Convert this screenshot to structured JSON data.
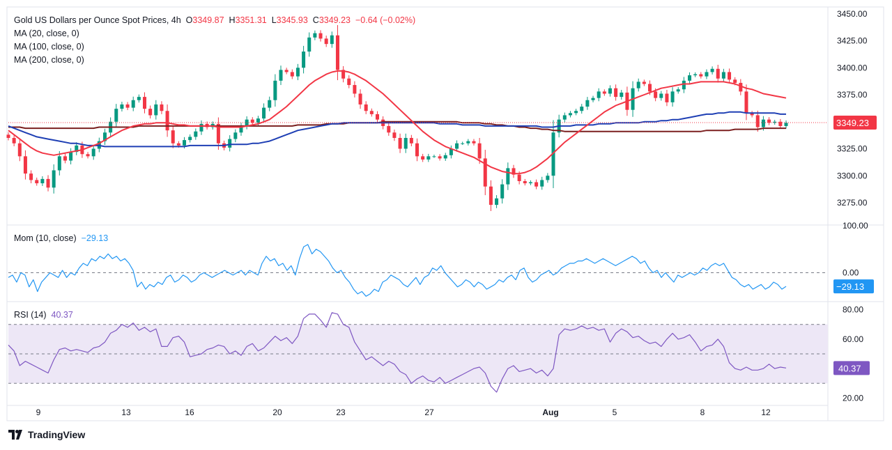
{
  "title": "Gold US Dollars per Ounce Spot Prices, 4h",
  "ohlc": {
    "o_label": "O",
    "o": "3349.87",
    "h_label": "H",
    "h": "3351.31",
    "l_label": "L",
    "l": "3345.93",
    "c_label": "C",
    "c": "3349.23",
    "change": "−0.64 (−0.02%)"
  },
  "indicators": {
    "ma20": "MA (20, close, 0)",
    "ma100": "MA (100, close, 0)",
    "ma200": "MA (200, close, 0)",
    "mom_label": "Mom (10, close)",
    "mom_value": "−29.13",
    "rsi_label": "RSI (14)",
    "rsi_value": "40.37"
  },
  "price_badge": "3349.23",
  "mom_badge": "−29.13",
  "rsi_badge": "40.37",
  "branding": "TradingView",
  "colors": {
    "up": "#089981",
    "down": "#f23645",
    "ma20": "#f23645",
    "ma100": "#1e3fb4",
    "ma200": "#7b1f1f",
    "mom": "#2196f3",
    "rsi": "#7e57c2",
    "rsi_band": "#ede7f6"
  },
  "chart_data": [
    {
      "type": "candlestick",
      "title": "Gold US Dollars per Ounce Spot Prices, 4h",
      "ylim": [
        3255,
        3455
      ],
      "y_ticks": [
        "3275.00",
        "3300.00",
        "3325.00",
        "3350.00",
        "3375.00",
        "3400.00",
        "3425.00",
        "3450.00"
      ],
      "x_ticks": [
        "9",
        "13",
        "16",
        "20",
        "23",
        "27",
        "Aug",
        "5",
        "8",
        "12"
      ],
      "last_price": 3349.23,
      "closes": [
        3335,
        3330,
        3318,
        3302,
        3296,
        3293,
        3297,
        3289,
        3305,
        3318,
        3314,
        3322,
        3328,
        3320,
        3318,
        3325,
        3332,
        3340,
        3350,
        3362,
        3366,
        3363,
        3370,
        3373,
        3362,
        3356,
        3366,
        3360,
        3342,
        3330,
        3328,
        3333,
        3336,
        3341,
        3348,
        3345,
        3348,
        3330,
        3326,
        3334,
        3340,
        3346,
        3352,
        3349,
        3353,
        3363,
        3370,
        3388,
        3398,
        3396,
        3392,
        3400,
        3415,
        3428,
        3432,
        3427,
        3422,
        3430,
        3398,
        3390,
        3384,
        3376,
        3366,
        3360,
        3357,
        3352,
        3346,
        3340,
        3335,
        3325,
        3335,
        3330,
        3318,
        3315,
        3318,
        3318,
        3316,
        3319,
        3325,
        3330,
        3330,
        3332,
        3330,
        3316,
        3290,
        3273,
        3279,
        3292,
        3307,
        3301,
        3295,
        3293,
        3294,
        3290,
        3296,
        3300,
        3340,
        3352,
        3356,
        3358,
        3360,
        3364,
        3370,
        3372,
        3378,
        3376,
        3381,
        3373,
        3377,
        3361,
        3381,
        3387,
        3385,
        3378,
        3372,
        3376,
        3368,
        3378,
        3380,
        3388,
        3393,
        3394,
        3392,
        3396,
        3399,
        3390,
        3396,
        3389,
        3386,
        3378,
        3358,
        3356,
        3345,
        3352,
        3349,
        3350,
        3346,
        3349
      ],
      "ma20": [
        3342,
        3338,
        3334,
        3330,
        3326,
        3323,
        3321,
        3320,
        3319,
        3320,
        3321,
        3322,
        3323,
        3324,
        3326,
        3328,
        3330,
        3333,
        3336,
        3339,
        3342,
        3344,
        3346,
        3347,
        3348,
        3348,
        3349,
        3349,
        3349,
        3348,
        3347,
        3347,
        3346,
        3346,
        3346,
        3346,
        3346,
        3345,
        3345,
        3345,
        3345,
        3345,
        3346,
        3347,
        3348,
        3350,
        3352,
        3356,
        3360,
        3364,
        3369,
        3374,
        3379,
        3384,
        3388,
        3391,
        3394,
        3396,
        3397,
        3397,
        3396,
        3394,
        3391,
        3388,
        3384,
        3380,
        3376,
        3371,
        3366,
        3361,
        3356,
        3351,
        3346,
        3341,
        3337,
        3333,
        3330,
        3327,
        3325,
        3323,
        3321,
        3319,
        3317,
        3314,
        3311,
        3308,
        3306,
        3304,
        3303,
        3302,
        3302,
        3303,
        3305,
        3308,
        3312,
        3316,
        3321,
        3326,
        3331,
        3335,
        3339,
        3343,
        3347,
        3351,
        3355,
        3359,
        3362,
        3365,
        3367,
        3369,
        3371,
        3373,
        3375,
        3377,
        3379,
        3381,
        3382,
        3383,
        3384,
        3385,
        3385,
        3386,
        3387,
        3387,
        3387,
        3387,
        3387,
        3386,
        3385,
        3383,
        3381,
        3380,
        3378,
        3376,
        3375,
        3374,
        3373,
        3372
      ],
      "ma100": [
        3346,
        3344,
        3342,
        3340,
        3338,
        3336,
        3335,
        3334,
        3333,
        3332,
        3331,
        3330,
        3330,
        3329,
        3328,
        3328,
        3328,
        3327,
        3327,
        3327,
        3327,
        3327,
        3327,
        3327,
        3327,
        3327,
        3327,
        3327,
        3327,
        3327,
        3327,
        3327,
        3328,
        3328,
        3328,
        3328,
        3328,
        3328,
        3328,
        3329,
        3329,
        3329,
        3329,
        3330,
        3330,
        3331,
        3332,
        3334,
        3336,
        3338,
        3340,
        3342,
        3343,
        3344,
        3345,
        3346,
        3347,
        3348,
        3348,
        3349,
        3349,
        3349,
        3349,
        3349,
        3349,
        3349,
        3349,
        3349,
        3349,
        3349,
        3349,
        3349,
        3349,
        3349,
        3349,
        3349,
        3348,
        3348,
        3348,
        3348,
        3347,
        3347,
        3347,
        3347,
        3346,
        3346,
        3346,
        3346,
        3346,
        3346,
        3346,
        3346,
        3346,
        3346,
        3345,
        3345,
        3345,
        3346,
        3346,
        3346,
        3347,
        3347,
        3347,
        3347,
        3348,
        3348,
        3348,
        3349,
        3349,
        3349,
        3349,
        3349,
        3350,
        3350,
        3350,
        3351,
        3351,
        3352,
        3352,
        3353,
        3354,
        3355,
        3356,
        3357,
        3357,
        3358,
        3358,
        3359,
        3359,
        3359,
        3358,
        3358,
        3358,
        3358,
        3358,
        3358,
        3357,
        3357
      ],
      "ma200": [
        3345,
        3345,
        3345,
        3344,
        3344,
        3344,
        3344,
        3344,
        3344,
        3344,
        3344,
        3344,
        3344,
        3344,
        3344,
        3344,
        3345,
        3345,
        3345,
        3345,
        3345,
        3345,
        3345,
        3346,
        3346,
        3346,
        3346,
        3346,
        3346,
        3346,
        3346,
        3346,
        3346,
        3346,
        3346,
        3346,
        3346,
        3346,
        3346,
        3346,
        3346,
        3346,
        3346,
        3346,
        3346,
        3346,
        3346,
        3346,
        3346,
        3346,
        3346,
        3347,
        3347,
        3347,
        3347,
        3347,
        3348,
        3348,
        3348,
        3348,
        3349,
        3349,
        3349,
        3349,
        3349,
        3349,
        3350,
        3350,
        3350,
        3350,
        3350,
        3350,
        3350,
        3350,
        3350,
        3350,
        3350,
        3350,
        3350,
        3350,
        3349,
        3349,
        3349,
        3349,
        3348,
        3348,
        3347,
        3347,
        3346,
        3346,
        3345,
        3345,
        3344,
        3344,
        3343,
        3343,
        3342,
        3342,
        3341,
        3341,
        3341,
        3341,
        3341,
        3341,
        3341,
        3341,
        3341,
        3341,
        3341,
        3341,
        3341,
        3341,
        3341,
        3341,
        3341,
        3341,
        3341,
        3341,
        3341,
        3341,
        3341,
        3341,
        3341,
        3342,
        3342,
        3342,
        3342,
        3342,
        3343,
        3343,
        3343,
        3343,
        3343,
        3344,
        3344,
        3344,
        3344,
        3344
      ]
    },
    {
      "type": "line",
      "title": "Mom (10, close)",
      "ylim": [
        -60,
        100
      ],
      "y_ticks": [
        "0.00",
        "100.00"
      ],
      "last_value": -29.13,
      "values": [
        -10,
        -5,
        -20,
        0,
        -5,
        -30,
        -15,
        -40,
        -20,
        -10,
        0,
        -5,
        -10,
        5,
        -10,
        0,
        -5,
        10,
        20,
        15,
        30,
        25,
        35,
        30,
        40,
        30,
        35,
        25,
        30,
        20,
        5,
        -30,
        -20,
        -35,
        -25,
        -30,
        -20,
        -25,
        -10,
        -5,
        -20,
        -15,
        -5,
        -10,
        -20,
        -15,
        -5,
        0,
        -5,
        -10,
        -5,
        0,
        5,
        0,
        -5,
        0,
        5,
        -5,
        5,
        0,
        -5,
        20,
        35,
        25,
        30,
        15,
        20,
        5,
        15,
        -5,
        30,
        55,
        60,
        40,
        50,
        45,
        35,
        25,
        10,
        0,
        5,
        -10,
        -20,
        -35,
        -45,
        -40,
        -50,
        -45,
        -35,
        -40,
        -20,
        -15,
        -5,
        -10,
        -15,
        -25,
        -30,
        -20,
        -10,
        -25,
        -10,
        -5,
        10,
        5,
        15,
        0,
        -10,
        -20,
        -30,
        -25,
        -15,
        -20,
        -30,
        -20,
        -25,
        -35,
        -30,
        -25,
        -15,
        -20,
        -10,
        -5,
        -15,
        5,
        10,
        -10,
        -20,
        -15,
        -5,
        0,
        5,
        -5,
        0,
        10,
        15,
        20,
        20,
        25,
        25,
        30,
        25,
        20,
        25,
        30,
        25,
        20,
        15,
        20,
        25,
        30,
        35,
        30,
        20,
        25,
        10,
        0,
        5,
        -10,
        0,
        -10,
        -20,
        -5,
        -10,
        -5,
        0,
        -5,
        0,
        10,
        5,
        15,
        20,
        15,
        20,
        5,
        -10,
        -15,
        -25,
        -30,
        -25,
        -35,
        -30,
        -25,
        -35,
        -30,
        -20,
        -25,
        -35,
        -29
      ],
      "series_note": "zero line dashed"
    },
    {
      "type": "line",
      "title": "RSI (14)",
      "ylim": [
        15,
        85
      ],
      "y_ticks": [
        "20.00",
        "60.00",
        "80.00"
      ],
      "bands": [
        30,
        50,
        70
      ],
      "last_value": 40.37,
      "values": [
        56,
        52,
        42,
        45,
        43,
        41,
        39,
        37,
        46,
        53,
        54,
        52,
        53,
        52,
        51,
        54,
        55,
        58,
        64,
        66,
        70,
        68,
        71,
        66,
        68,
        65,
        67,
        55,
        55,
        61,
        62,
        58,
        48,
        49,
        50,
        53,
        54,
        56,
        55,
        50,
        52,
        49,
        55,
        57,
        52,
        54,
        58,
        62,
        59,
        61,
        57,
        62,
        74,
        77,
        77,
        73,
        68,
        78,
        77,
        70,
        68,
        58,
        52,
        46,
        48,
        45,
        42,
        45,
        43,
        38,
        36,
        30,
        33,
        35,
        32,
        31,
        34,
        30,
        32,
        34,
        36,
        38,
        40,
        41,
        37,
        28,
        24,
        33,
        40,
        42,
        38,
        39,
        40,
        37,
        39,
        35,
        40,
        63,
        67,
        66,
        67,
        69,
        67,
        68,
        66,
        67,
        58,
        64,
        67,
        65,
        61,
        62,
        59,
        57,
        58,
        55,
        60,
        64,
        60,
        61,
        63,
        58,
        52,
        55,
        56,
        60,
        55,
        44,
        40,
        39,
        41,
        39,
        39,
        40,
        43,
        40,
        41,
        40.4
      ]
    }
  ]
}
